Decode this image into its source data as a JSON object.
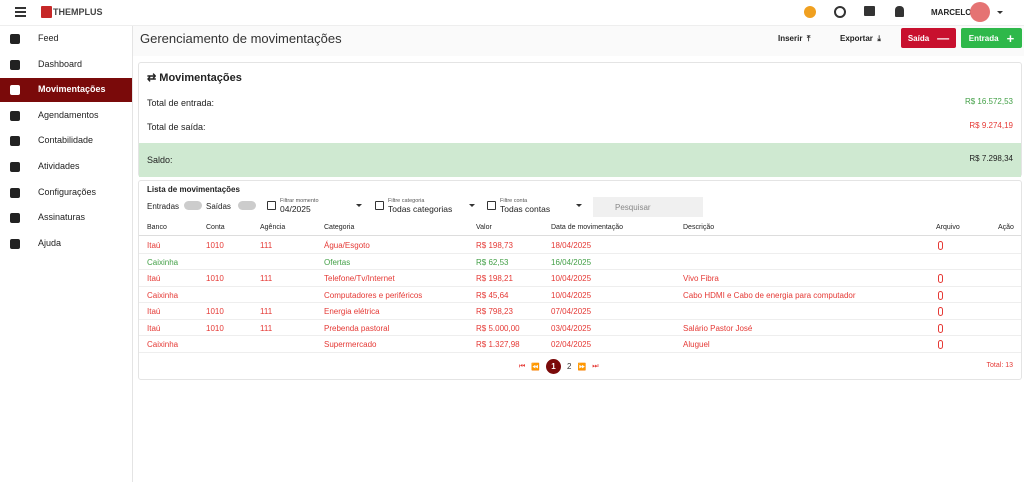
{
  "topbar": {
    "logo": "THEMPLUS",
    "user": "MARCELO"
  },
  "sidebar": {
    "active": 2,
    "items": [
      "Feed",
      "Dashboard",
      "Movimentações",
      "Agendamentos",
      "Contabilidade",
      "Atividades",
      "Configurações",
      "Assinaturas",
      "Ajuda"
    ]
  },
  "header": {
    "title": "Gerenciamento de movimentações",
    "buttons": {
      "insert": "Inserir",
      "export": "Exportar",
      "out": "Saída",
      "in": "Entrada"
    }
  },
  "summary": {
    "title": "Movimentações",
    "in_label": "Total de entrada:",
    "in_value": "R$ 16.572,53",
    "out_label": "Total de saída:",
    "out_value": "R$ 9.274,19",
    "balance_label": "Saldo:",
    "balance_value": "R$ 7.298,34"
  },
  "list": {
    "title": "Lista de movimentações",
    "toggles": [
      "Entradas",
      "Saídas"
    ],
    "filters": [
      {
        "label": "Filtrar momento",
        "value": "04/2025"
      },
      {
        "label": "Filtre categoria",
        "value": "Todas categorias"
      },
      {
        "label": "Filtre conta",
        "value": "Todas contas"
      }
    ],
    "search": "Pesquisar",
    "columns": [
      "Banco",
      "Conta",
      "Agência",
      "Categoria",
      "Valor",
      "Data de movimentação",
      "Descrição",
      "Arquivo",
      "Ação"
    ],
    "rows": [
      {
        "bank": "Itaú",
        "account": "1010",
        "agency": "111",
        "category": "Água/Esgoto",
        "value": "R$ 198,73",
        "date": "18/04/2025",
        "attachment": true,
        "color": "#e53935"
      },
      {
        "bank": "Caixinha",
        "category": "Ofertas",
        "value": "R$ 62,53",
        "date": "16/04/2025",
        "attachment": false,
        "color": "#43a047"
      },
      {
        "bank": "Itaú",
        "account": "1010",
        "agency": "111",
        "category": "Telefone/Tv/Internet",
        "value": "R$ 198,21",
        "date": "10/04/2025",
        "description": "Vivo Fibra",
        "attachment": true,
        "color": "#e53935"
      },
      {
        "bank": "Caixinha",
        "category": "Computadores e periféricos",
        "value": "R$ 45,64",
        "date": "10/04/2025",
        "description": "Cabo HDMI e Cabo de energia para computador",
        "attachment": true,
        "color": "#e53935"
      },
      {
        "bank": "Itaú",
        "account": "1010",
        "agency": "111",
        "category": "Energia elétrica",
        "value": "R$ 798,23",
        "date": "07/04/2025",
        "attachment": true,
        "color": "#e53935"
      },
      {
        "bank": "Itaú",
        "account": "1010",
        "agency": "111",
        "category": "Prebenda pastoral",
        "value": "R$ 5.000,00",
        "date": "03/04/2025",
        "description": "Salário Pastor José",
        "attachment": true,
        "color": "#e53935"
      },
      {
        "bank": "Caixinha",
        "category": "Supermercado",
        "value": "R$ 1.327,98",
        "date": "02/04/2025",
        "description": "Aluguel",
        "attachment": true,
        "color": "#e53935"
      }
    ],
    "pages": [
      1,
      2
    ],
    "current_page": 1,
    "total": "Total: 13"
  }
}
